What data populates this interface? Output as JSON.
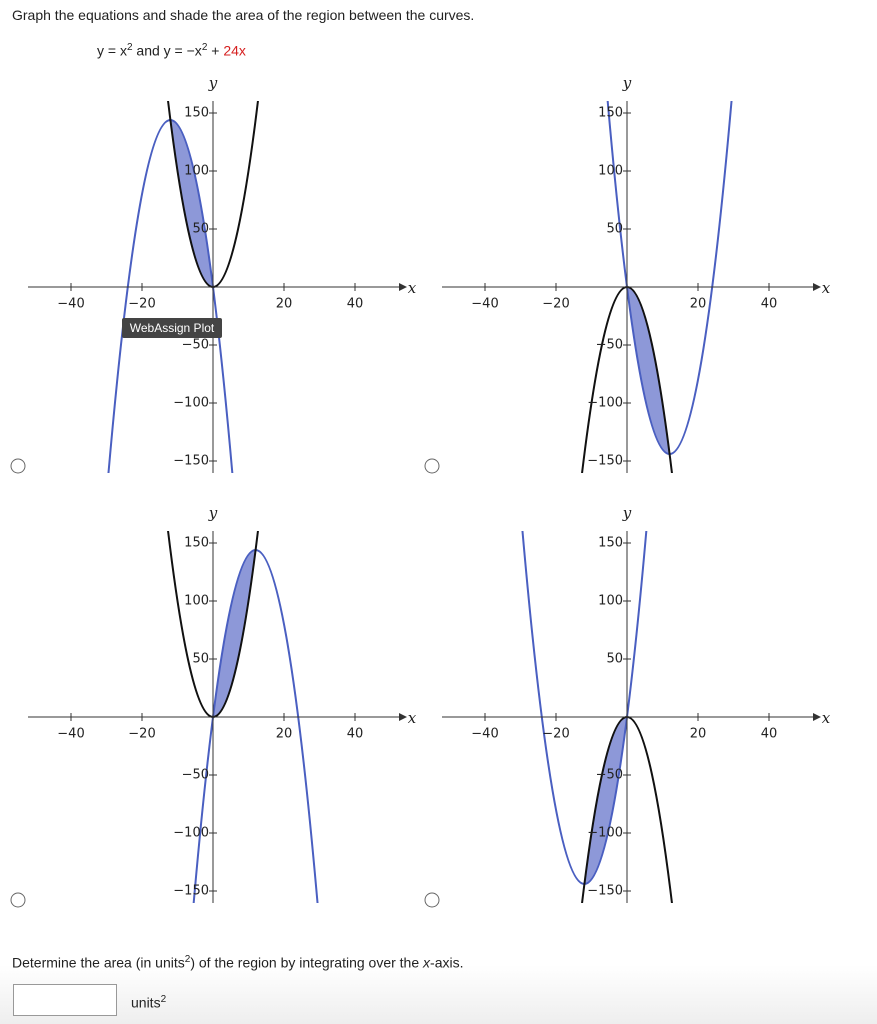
{
  "header": {
    "instruction": "Graph the equations and shade the area of the region between the curves.",
    "equation": [
      "y = x",
      "2",
      " and y = −x",
      "2",
      " + ",
      "24x"
    ]
  },
  "graphs": [
    {
      "x_label": "x",
      "y_label": "y",
      "xticks": [
        {
          "value": -40,
          "label": "−40"
        },
        {
          "value": -20,
          "label": "−20"
        },
        20,
        40
      ],
      "yticks": [
        150,
        100,
        50,
        {
          "value": -50,
          "label": "−50"
        },
        {
          "value": -100,
          "label": "−100"
        },
        {
          "value": -150,
          "label": "−150"
        }
      ]
    },
    {
      "x_label": "x",
      "y_label": "y",
      "xticks": [
        {
          "value": -40,
          "label": "−40"
        },
        {
          "value": -20,
          "label": "−20"
        },
        20,
        40
      ],
      "yticks": [
        150,
        100,
        50,
        {
          "value": -50,
          "label": "−50"
        },
        {
          "value": -100,
          "label": "−100"
        },
        {
          "value": -150,
          "label": "−150"
        }
      ]
    },
    {
      "x_label": "x",
      "y_label": "y",
      "xticks": [
        {
          "value": -40,
          "label": "−40"
        },
        {
          "value": -20,
          "label": "−20"
        },
        20,
        40
      ],
      "yticks": [
        150,
        100,
        50,
        {
          "value": -50,
          "label": "−50"
        },
        {
          "value": -100,
          "label": "−100"
        },
        {
          "value": -150,
          "label": "−150"
        }
      ]
    },
    {
      "x_label": "x",
      "y_label": "y",
      "xticks": [
        {
          "value": -40,
          "label": "−40"
        },
        {
          "value": -20,
          "label": "−20"
        },
        20,
        40
      ],
      "yticks": [
        150,
        100,
        50,
        {
          "value": -50,
          "label": "−50"
        },
        {
          "value": -100,
          "label": "−100"
        },
        {
          "value": -150,
          "label": "−150"
        }
      ]
    }
  ],
  "tooltip": "WebAssign Plot",
  "question": {
    "text": [
      "Determine the area (in units",
      "2",
      ") of the region by integrating over the ",
      "x",
      "-axis."
    ]
  },
  "answer": {
    "unit": [
      "units",
      "2"
    ]
  }
}
